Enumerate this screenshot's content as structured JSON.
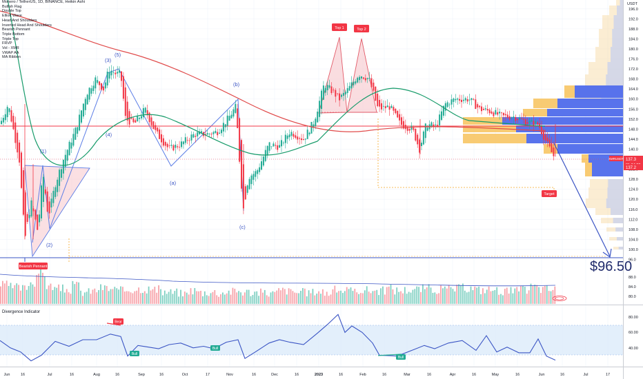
{
  "header": {
    "title": "Monero / TetherUS, 1D, BINANCE, Heikin Ashi",
    "indicators": [
      "Bullish Flag",
      "Double Top",
      "Elliott Wave",
      "Head And Shoulders",
      "Inverted Head And Shoulders",
      "Bearish Pennant",
      "Triple Bottom",
      "Triple Top",
      "FRVP",
      "Vol - XMR",
      "VWAP AA",
      "MA Ribbon"
    ]
  },
  "price_axis": {
    "currency": "USDT",
    "ticks": [
      "196.0",
      "192.0",
      "188.0",
      "184.0",
      "180.0",
      "176.0",
      "172.0",
      "168.0",
      "164.0",
      "160.0",
      "156.0",
      "152.0",
      "148.0",
      "144.0",
      "140.0",
      "136.0",
      "132.0",
      "128.0",
      "124.0",
      "120.0",
      "116.0",
      "112.0",
      "108.0",
      "104.0",
      "100.0",
      "96.0"
    ],
    "last_price": "137.3",
    "countdown": "21:34:22",
    "symbol_tag": "XMRUSDT",
    "low_marker": "137.2"
  },
  "volume_axis": {
    "ticks": [
      "88.0",
      "84.0",
      "80.0"
    ]
  },
  "time_axis": {
    "labels": [
      "Jun",
      "16",
      "Jul",
      "16",
      "Aug",
      "16",
      "Sep",
      "16",
      "Oct",
      "17",
      "Nov",
      "16",
      "Dec",
      "16",
      "2023",
      "16",
      "Feb",
      "16",
      "Mar",
      "16",
      "Apr",
      "16",
      "May",
      "16",
      "Jun",
      "16",
      "Jul",
      "17"
    ]
  },
  "annotations": {
    "top1": "Top 1",
    "top2": "Top 2",
    "target": "Target",
    "bearish_pennant": "Bearish Pennant",
    "target_price": "$96.50",
    "wave_labels": [
      "(1)",
      "(2)",
      "(3)",
      "(4)",
      "(5)",
      "(a)",
      "(b)",
      "(c)"
    ]
  },
  "divergence": {
    "title": "Divergence Indicator",
    "ticks": [
      "80.00",
      "60.00",
      "40.00"
    ],
    "bear_label": "Bear",
    "bull_label": "Bull"
  },
  "chart_data": {
    "type": "candlestick",
    "title": "Monero / TetherUS, 1D, BINANCE, Heikin Ashi",
    "ylim": [
      94,
      200
    ],
    "price_path": [
      [
        0,
        150
      ],
      [
        12,
        158
      ],
      [
        28,
        136
      ],
      [
        36,
        104
      ],
      [
        45,
        119
      ],
      [
        55,
        107
      ],
      [
        62,
        131
      ],
      [
        70,
        113
      ],
      [
        80,
        126
      ],
      [
        92,
        136
      ],
      [
        110,
        148
      ],
      [
        125,
        162
      ],
      [
        138,
        168
      ],
      [
        150,
        164
      ],
      [
        158,
        172
      ],
      [
        168,
        170
      ],
      [
        175,
        170
      ],
      [
        182,
        152
      ],
      [
        195,
        150
      ],
      [
        210,
        156
      ],
      [
        225,
        147
      ],
      [
        245,
        140
      ],
      [
        262,
        142
      ],
      [
        282,
        146
      ],
      [
        300,
        146
      ],
      [
        315,
        147
      ],
      [
        330,
        152
      ],
      [
        342,
        157
      ],
      [
        348,
        132
      ],
      [
        353,
        116
      ],
      [
        360,
        129
      ],
      [
        372,
        131
      ],
      [
        390,
        142
      ],
      [
        405,
        141
      ],
      [
        420,
        147
      ],
      [
        440,
        144
      ],
      [
        455,
        151
      ],
      [
        470,
        166
      ],
      [
        482,
        163
      ],
      [
        492,
        160
      ],
      [
        505,
        164
      ],
      [
        520,
        170
      ],
      [
        535,
        168
      ],
      [
        548,
        156
      ],
      [
        565,
        157
      ],
      [
        580,
        150
      ],
      [
        598,
        148
      ],
      [
        608,
        140
      ],
      [
        618,
        150
      ],
      [
        632,
        149
      ],
      [
        645,
        158
      ],
      [
        660,
        160
      ],
      [
        680,
        160
      ],
      [
        695,
        156
      ],
      [
        712,
        155
      ],
      [
        728,
        153
      ],
      [
        745,
        153
      ],
      [
        762,
        151
      ],
      [
        780,
        150
      ],
      [
        795,
        141
      ],
      [
        803,
        137
      ]
    ],
    "volume_levels": [
      0.46,
      0.41,
      0.38,
      0.52,
      0.74,
      0.43,
      0.37,
      0.35,
      0.45,
      0.29,
      0.32,
      0.39,
      0.36,
      0.32,
      0.35,
      0.37,
      0.36,
      0.34,
      0.29,
      0.28,
      0.25,
      0.33,
      0.28,
      0.29,
      0.27,
      0.3,
      0.31,
      0.29,
      0.28,
      0.27,
      0.26,
      0.33,
      0.3,
      0.28,
      0.28,
      0.31,
      0.27,
      0.34,
      0.33,
      0.29,
      0.34,
      0.33,
      0.32,
      0.38,
      0.33,
      0.34,
      0.36,
      0.38,
      0.35,
      0.35,
      0.37,
      0.39,
      0.38,
      0.34,
      0.35,
      0.33,
      0.31,
      0.32,
      0.34,
      0.42,
      0.36,
      0.35
    ],
    "divergence_path": [
      [
        0,
        52
      ],
      [
        15,
        43
      ],
      [
        30,
        38
      ],
      [
        45,
        27
      ],
      [
        60,
        34
      ],
      [
        80,
        51
      ],
      [
        100,
        45
      ],
      [
        120,
        53
      ],
      [
        140,
        53
      ],
      [
        160,
        60
      ],
      [
        175,
        57
      ],
      [
        185,
        33
      ],
      [
        200,
        46
      ],
      [
        215,
        44
      ],
      [
        230,
        42
      ],
      [
        245,
        47
      ],
      [
        262,
        49
      ],
      [
        280,
        43
      ],
      [
        295,
        45
      ],
      [
        310,
        42
      ],
      [
        328,
        50
      ],
      [
        345,
        53
      ],
      [
        355,
        30
      ],
      [
        370,
        38
      ],
      [
        390,
        49
      ],
      [
        405,
        53
      ],
      [
        420,
        50
      ],
      [
        440,
        47
      ],
      [
        460,
        61
      ],
      [
        475,
        72
      ],
      [
        490,
        84
      ],
      [
        500,
        62
      ],
      [
        510,
        70
      ],
      [
        525,
        62
      ],
      [
        540,
        49
      ],
      [
        550,
        34
      ],
      [
        575,
        33
      ],
      [
        582,
        35
      ],
      [
        600,
        41
      ],
      [
        615,
        46
      ],
      [
        630,
        42
      ],
      [
        650,
        49
      ],
      [
        670,
        52
      ],
      [
        690,
        40
      ],
      [
        705,
        58
      ],
      [
        720,
        38
      ],
      [
        735,
        44
      ],
      [
        752,
        37
      ],
      [
        768,
        37
      ],
      [
        780,
        54
      ],
      [
        792,
        33
      ],
      [
        805,
        28
      ]
    ]
  }
}
